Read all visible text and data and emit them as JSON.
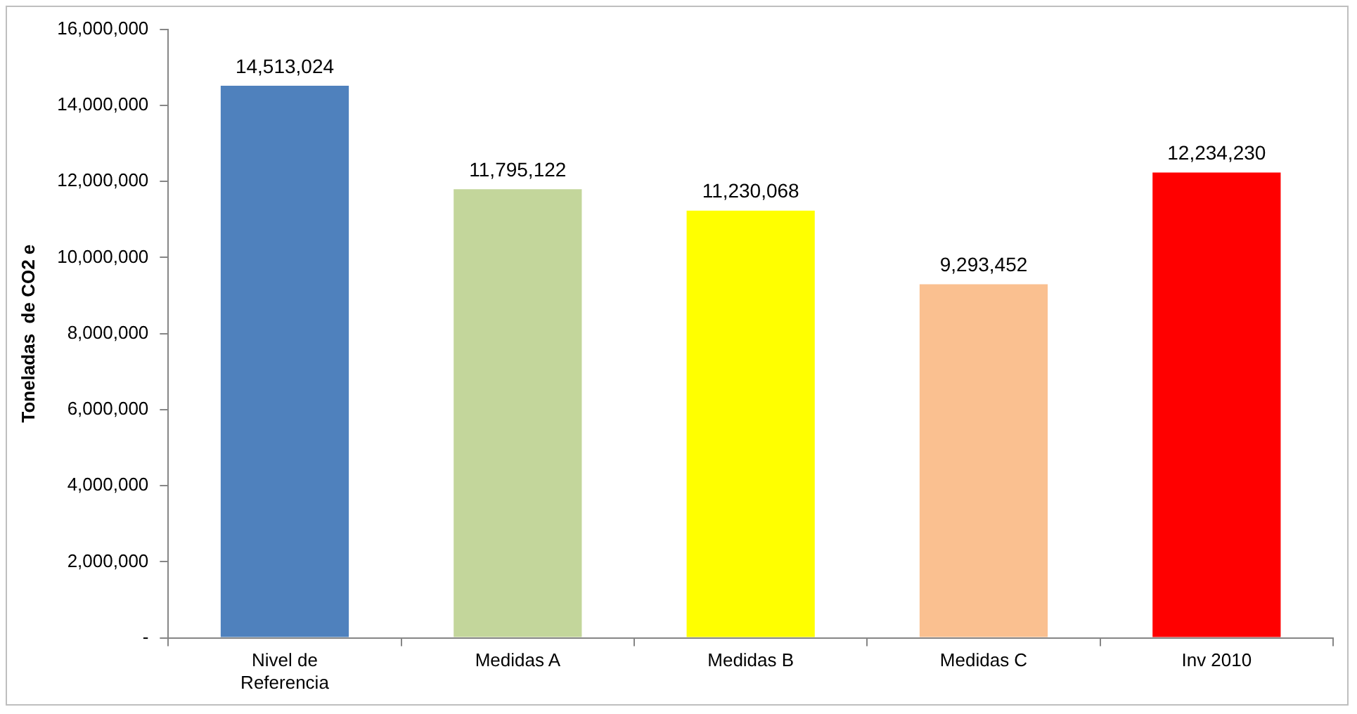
{
  "chart_data": {
    "type": "bar",
    "ylabel": "Toneladas  de CO2 e",
    "categories": [
      "Nivel de Referencia",
      "Medidas A",
      "Medidas B",
      "Medidas C",
      "Inv 2010"
    ],
    "values": [
      14513024,
      11795122,
      11230068,
      9293452,
      12234230
    ],
    "colors": [
      "#4f81bd",
      "#c3d69b",
      "#ffff00",
      "#fac090",
      "#ff0000"
    ],
    "value_labels": [
      "14,513,024",
      "11,795,122",
      "11,230,068",
      "9,293,452",
      "12,234,230"
    ],
    "ylim": [
      0,
      16000000
    ],
    "yticks": [
      {
        "value": 0,
        "label": "-"
      },
      {
        "value": 2000000,
        "label": "2,000,000"
      },
      {
        "value": 4000000,
        "label": "4,000,000"
      },
      {
        "value": 6000000,
        "label": "6,000,000"
      },
      {
        "value": 8000000,
        "label": "8,000,000"
      },
      {
        "value": 10000000,
        "label": "10,000,000"
      },
      {
        "value": 12000000,
        "label": "12,000,000"
      },
      {
        "value": 14000000,
        "label": "14,000,000"
      },
      {
        "value": 16000000,
        "label": "16,000,000"
      }
    ],
    "grid": false,
    "legend": false
  }
}
